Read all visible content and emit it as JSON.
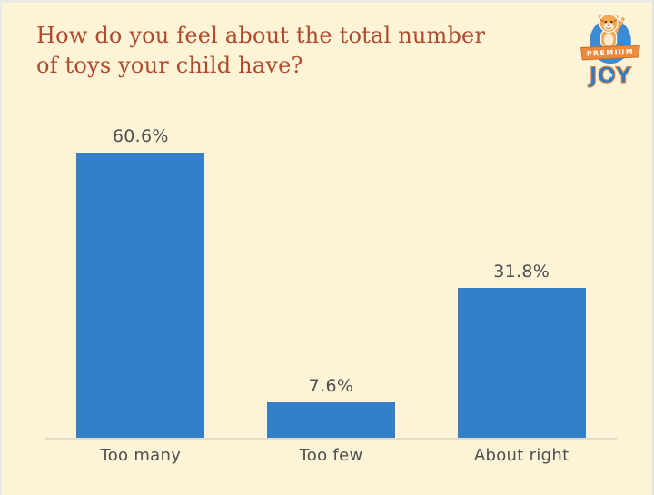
{
  "header": {
    "title_line1": "How do you feel about the total number",
    "title_line2": "of toys your child have?"
  },
  "logo": {
    "premium": "PREMIUM",
    "joy": "JOY"
  },
  "chart_data": {
    "type": "bar",
    "title": "How do you feel about the total number of toys your child have?",
    "categories": [
      "Too many",
      "Too few",
      "About right"
    ],
    "values": [
      60.6,
      7.6,
      31.8
    ],
    "value_labels": [
      "60.6%",
      "7.6%",
      "31.8%"
    ],
    "xlabel": "",
    "ylabel": "",
    "ylim": [
      0,
      65
    ],
    "grid": false,
    "legend": false,
    "bar_color": "#3380C8",
    "background": "#FDF3D7"
  },
  "colors": {
    "background": "#FDF3D7",
    "title": "#B04A2C",
    "bar": "#3380C8",
    "label": "#4F4F4F",
    "axis_line": "#E6DCC6",
    "logo_blue": "#3C8CD3",
    "logo_orange": "#EE8A3C"
  }
}
